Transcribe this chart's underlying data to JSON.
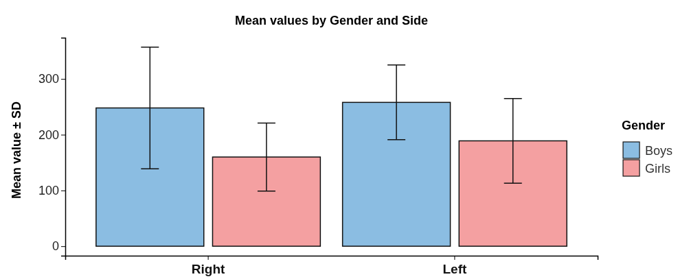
{
  "chart_data": {
    "type": "bar",
    "title": "Mean values by Gender and Side",
    "ylabel": "Mean value ± SD",
    "legend_title": "Gender",
    "categories": [
      "Right",
      "Left"
    ],
    "series": [
      {
        "name": "Boys",
        "color": "#8bbde2",
        "values": [
          248,
          258
        ],
        "errors": [
          109,
          67
        ]
      },
      {
        "name": "Girls",
        "color": "#f4a0a1",
        "values": [
          160,
          189
        ],
        "errors": [
          61,
          76
        ]
      }
    ],
    "ylim": [
      -17,
      374
    ],
    "yticks": [
      0,
      100,
      200,
      300
    ],
    "grid": false,
    "legend": "right"
  }
}
